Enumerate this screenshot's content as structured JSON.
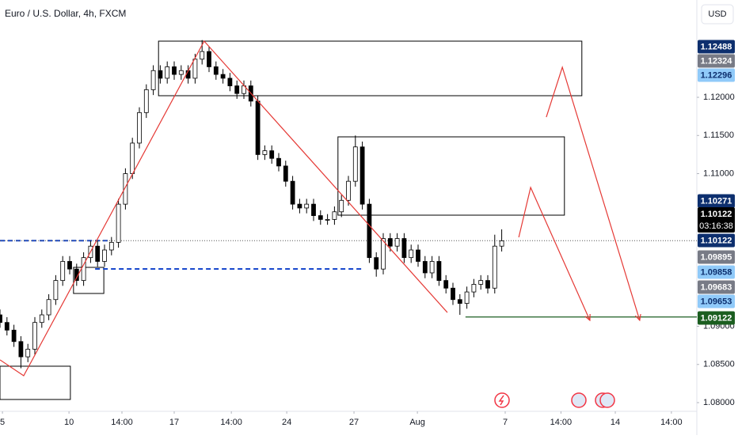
{
  "chart_data": {
    "type": "candlestick",
    "title": "Euro / U.S. Dollar, 4h, FXCM",
    "currency": "USD",
    "up_color": "#ffffff",
    "down_color": "#000000",
    "border_color": "#000000",
    "grid": false,
    "xlim": [
      0,
      200
    ],
    "ylim": [
      1.07886,
      1.13275
    ],
    "xticks": [
      {
        "value": 0.7,
        "label": "5"
      },
      {
        "value": 19.8,
        "label": "10"
      },
      {
        "value": 35,
        "label": "14:00"
      },
      {
        "value": 50,
        "label": "17"
      },
      {
        "value": 66.4,
        "label": "14:00"
      },
      {
        "value": 82.3,
        "label": "24"
      },
      {
        "value": 101.6,
        "label": "27"
      },
      {
        "value": 119.8,
        "label": "Aug"
      },
      {
        "value": 145,
        "label": "7"
      },
      {
        "value": 161,
        "label": "14:00"
      },
      {
        "value": 176.6,
        "label": "14"
      },
      {
        "value": 192.7,
        "label": "14:00"
      }
    ],
    "yticks": [
      {
        "value": 1.08,
        "label": "1.08000"
      },
      {
        "value": 1.085,
        "label": "1.08500"
      },
      {
        "value": 1.09,
        "label": "1.09000"
      },
      {
        "value": 1.11,
        "label": "1.11000"
      },
      {
        "value": 1.115,
        "label": "1.11500"
      },
      {
        "value": 1.12,
        "label": "1.12000"
      }
    ],
    "x": [
      0,
      2,
      4,
      6,
      8,
      10,
      12,
      14,
      16,
      18,
      20,
      22,
      24,
      26,
      28,
      30,
      32,
      34,
      36,
      38,
      40,
      42,
      44,
      46,
      48,
      50,
      52,
      54,
      56,
      58,
      60,
      62,
      64,
      66,
      68,
      70,
      72,
      74,
      76,
      78,
      80,
      82,
      84,
      86,
      88,
      90,
      92,
      94,
      96,
      98,
      100,
      102,
      104,
      106,
      108,
      110,
      112,
      114,
      116,
      118,
      120,
      122,
      124,
      126,
      128,
      130,
      132,
      134,
      136,
      138,
      140,
      142,
      144
    ],
    "open": [
      1.0915,
      1.0905,
      1.0895,
      1.088,
      1.086,
      1.087,
      1.0905,
      1.0915,
      1.0935,
      1.096,
      1.0985,
      1.0975,
      1.096,
      1.099,
      1.1005,
      1.0985,
      1.1,
      1.101,
      1.106,
      1.11,
      1.114,
      1.118,
      1.121,
      1.1235,
      1.1225,
      1.124,
      1.123,
      1.1235,
      1.1225,
      1.125,
      1.126,
      1.124,
      1.123,
      1.1225,
      1.1215,
      1.1205,
      1.1215,
      1.1195,
      1.1125,
      1.113,
      1.112,
      1.111,
      1.109,
      1.106,
      1.1055,
      1.106,
      1.1045,
      1.104,
      1.104,
      1.105,
      1.1065,
      1.109,
      1.1135,
      1.106,
      1.099,
      1.0975,
      1.1015,
      1.1005,
      1.1015,
      1.099,
      1.1,
      1.0985,
      1.097,
      1.0985,
      1.096,
      1.095,
      1.0935,
      1.093,
      1.0945,
      1.0955,
      1.096,
      1.095,
      1.1005
    ],
    "high": [
      1.0922,
      1.0912,
      1.0902,
      1.0887,
      1.0877,
      1.0912,
      1.0922,
      1.0942,
      1.0967,
      1.0992,
      1.0992,
      1.0982,
      1.0997,
      1.1012,
      1.1012,
      1.1007,
      1.1017,
      1.1067,
      1.1107,
      1.1147,
      1.1187,
      1.1217,
      1.1242,
      1.1242,
      1.1247,
      1.1247,
      1.1242,
      1.1242,
      1.1257,
      1.1275,
      1.1267,
      1.1247,
      1.1237,
      1.1232,
      1.1222,
      1.1222,
      1.1222,
      1.1202,
      1.1137,
      1.1137,
      1.1127,
      1.1117,
      1.1097,
      1.1067,
      1.1067,
      1.1067,
      1.1052,
      1.1047,
      1.1057,
      1.1072,
      1.1097,
      1.115,
      1.1142,
      1.1067,
      1.0997,
      1.1022,
      1.1022,
      1.1022,
      1.1022,
      1.1007,
      1.1007,
      1.0992,
      1.0992,
      1.0992,
      1.0967,
      1.0957,
      1.0942,
      1.0952,
      1.0962,
      1.0967,
      1.0967,
      1.102,
      1.1027
    ],
    "low": [
      1.0898,
      1.0888,
      1.0873,
      1.0845,
      1.0853,
      1.0863,
      1.0898,
      1.0908,
      1.0928,
      1.0953,
      1.0968,
      1.0953,
      1.0953,
      1.0983,
      1.0978,
      1.0978,
      1.0993,
      1.1003,
      1.1053,
      1.1093,
      1.1133,
      1.1173,
      1.1203,
      1.1218,
      1.1218,
      1.1223,
      1.1223,
      1.1218,
      1.1218,
      1.1243,
      1.1233,
      1.1223,
      1.1218,
      1.1208,
      1.1198,
      1.1198,
      1.1188,
      1.1118,
      1.1118,
      1.1113,
      1.1103,
      1.1083,
      1.1053,
      1.1048,
      1.1048,
      1.1038,
      1.1033,
      1.1033,
      1.1033,
      1.1043,
      1.1058,
      1.1083,
      1.1053,
      1.0983,
      1.0965,
      1.0968,
      1.0998,
      1.0998,
      1.0983,
      1.0983,
      1.0978,
      1.0963,
      1.0963,
      1.0953,
      1.0943,
      1.0928,
      1.0915,
      1.0923,
      1.0938,
      1.0948,
      1.0943,
      1.0943,
      1.0998
    ],
    "close": [
      1.0905,
      1.0895,
      1.088,
      1.086,
      1.087,
      1.0905,
      1.0915,
      1.0935,
      1.096,
      1.0985,
      1.0975,
      1.096,
      1.099,
      1.1005,
      1.0985,
      1.1,
      1.101,
      1.106,
      1.11,
      1.114,
      1.118,
      1.121,
      1.1235,
      1.1225,
      1.124,
      1.123,
      1.1235,
      1.1225,
      1.125,
      1.126,
      1.124,
      1.123,
      1.1225,
      1.1215,
      1.1205,
      1.1215,
      1.1195,
      1.1125,
      1.113,
      1.112,
      1.111,
      1.109,
      1.106,
      1.1055,
      1.106,
      1.1045,
      1.104,
      1.104,
      1.105,
      1.1065,
      1.109,
      1.1135,
      1.106,
      1.099,
      1.0975,
      1.1015,
      1.1005,
      1.1015,
      1.099,
      1.1,
      1.0985,
      1.097,
      1.0985,
      1.096,
      1.095,
      1.0935,
      1.093,
      1.0945,
      1.0955,
      1.096,
      1.095,
      1.1005,
      1.1012
    ],
    "zones": [
      {
        "x": [
          45.5,
          167
        ],
        "y": [
          1.12021,
          1.12736
        ]
      },
      {
        "x": [
          97,
          162
        ],
        "y": [
          1.10456,
          1.11482
        ]
      },
      {
        "x": [
          21.1,
          29.8
        ],
        "y": [
          1.0943,
          1.09772
        ]
      },
      {
        "x": [
          0,
          20.2
        ],
        "y": [
          1.08041,
          1.08477
        ]
      }
    ],
    "drawings": [
      {
        "color": "#e53935",
        "x": [
          0,
          6.8,
          58.6,
          128.4
        ],
        "y": [
          1.0856,
          1.08352,
          1.12736,
          1.09181
        ]
      },
      {
        "color": "#e53935",
        "x": [
          148.9,
          152.3,
          169.3
        ],
        "y": [
          1.10166,
          1.10819,
          1.09078
        ]
      },
      {
        "color": "#e53935",
        "x": [
          156.8,
          161.4,
          183.6
        ],
        "y": [
          1.11741,
          1.12394,
          1.09078
        ]
      }
    ],
    "levels": [
      {
        "color": "#1848cc",
        "x": [
          0,
          31.8
        ],
        "y": 1.10122
      },
      {
        "color": "#1848cc",
        "x": [
          27.3,
          104.5
        ],
        "y": 1.09751
      },
      {
        "color": "#1b5e20",
        "x": [
          133.6,
          200
        ],
        "y": 1.09122
      }
    ],
    "price_labels": [
      {
        "value": 1.12488,
        "color": "#0d2f6e"
      },
      {
        "value": 1.12324,
        "color": "#787b86"
      },
      {
        "value": 1.12296,
        "color": "#90caf9"
      },
      {
        "value": 1.10271,
        "color": "#0d2f6e"
      },
      {
        "value": 1.10122,
        "color": "#000000",
        "countdown": "03:16:38"
      },
      {
        "value": 1.10122,
        "color": "#0d2f6e"
      },
      {
        "value": 1.09895,
        "color": "#787b86"
      },
      {
        "value": 1.09858,
        "color": "#90caf9"
      },
      {
        "value": 1.09683,
        "color": "#787b86"
      },
      {
        "value": 1.09653,
        "color": "#90caf9"
      },
      {
        "value": 1.09122,
        "color": "#1b5e20"
      }
    ]
  }
}
